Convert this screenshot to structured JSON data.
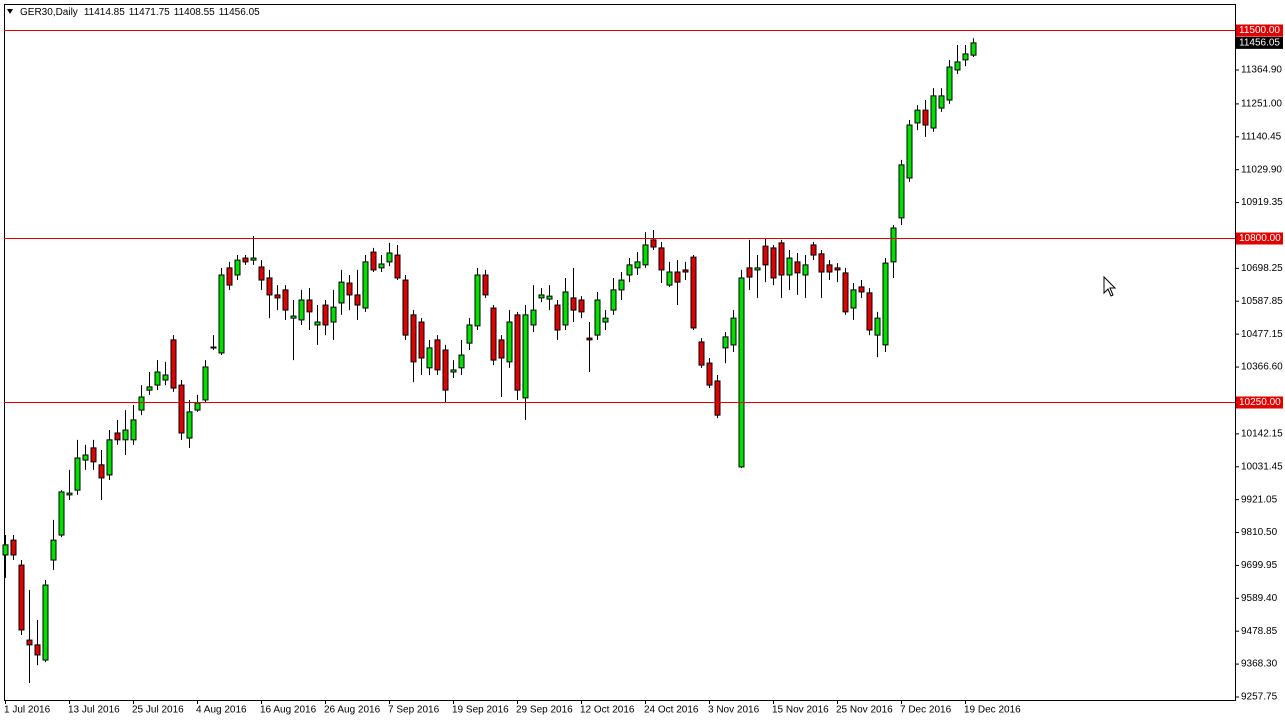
{
  "chart_data": {
    "type": "candlestick",
    "title": "GER30,Daily",
    "categories": [
      "1 Jul 2016",
      null,
      null,
      null,
      null,
      null,
      null,
      null,
      "13 Jul 2016",
      null,
      null,
      null,
      null,
      null,
      null,
      null,
      "25 Jul 2016",
      null,
      null,
      null,
      null,
      null,
      null,
      null,
      "4 Aug 2016",
      null,
      null,
      null,
      null,
      null,
      null,
      null,
      "16 Aug 2016",
      null,
      null,
      null,
      null,
      null,
      null,
      null,
      "26 Aug 2016",
      null,
      null,
      null,
      null,
      null,
      null,
      null,
      "7 Sep 2016",
      null,
      null,
      null,
      null,
      null,
      null,
      null,
      "19 Sep 2016",
      null,
      null,
      null,
      null,
      null,
      null,
      null,
      "29 Sep 2016",
      null,
      null,
      null,
      null,
      null,
      null,
      null,
      "12 Oct 2016",
      null,
      null,
      null,
      null,
      null,
      null,
      null,
      "24 Oct 2016",
      null,
      null,
      null,
      null,
      null,
      null,
      null,
      "3 Nov 2016",
      null,
      null,
      null,
      null,
      null,
      null,
      null,
      "15 Nov 2016",
      null,
      null,
      null,
      null,
      null,
      null,
      null,
      "25 Nov 2016",
      null,
      null,
      null,
      null,
      null,
      null,
      null,
      "7 Dec 2016",
      null,
      null,
      null,
      null,
      null,
      null,
      null,
      "19 Dec 2016",
      null
    ],
    "open": [
      9735,
      9785,
      9701,
      9449,
      9433,
      9382,
      9718,
      9802,
      9937,
      9953,
      10054,
      10095,
      10038,
      10004,
      10145,
      10122,
      10122,
      10222,
      10289,
      10306,
      10323,
      10458,
      10306,
      10128,
      10222,
      10256,
      10431,
      10414,
      10700,
      10676,
      10733,
      10726,
      10703,
      10666,
      10609,
      10626,
      10531,
      10525,
      10592,
      10508,
      10575,
      10518,
      10582,
      10649,
      10609,
      10565,
      10753,
      10700,
      10720,
      10743,
      10659,
      10542,
      10518,
      10364,
      10458,
      10424,
      10350,
      10364,
      10447,
      10505,
      10676,
      10565,
      10458,
      10384,
      10542,
      10263,
      10508,
      10599,
      10595,
      10575,
      10508,
      10599,
      10592,
      10464,
      10474,
      10518,
      10558,
      10626,
      10676,
      10700,
      10710,
      10794,
      10767,
      10642,
      10686,
      10693,
      10736,
      10451,
      10380,
      10320,
      10431,
      10441,
      10031,
      10700,
      10693,
      10773,
      10767,
      10784,
      10676,
      10720,
      10676,
      10777,
      10747,
      10710,
      10700,
      10683,
      10565,
      10636,
      10616,
      10474,
      10441,
      10720,
      10868,
      11002,
      11187,
      11230,
      11170,
      11237,
      11264,
      11365,
      11399,
      11414.85
    ],
    "high": [
      9802,
      9802,
      9718,
      9617,
      9517,
      9651,
      9853,
      9953,
      10021,
      10122,
      10105,
      10122,
      10088,
      10155,
      10189,
      10222,
      10239,
      10306,
      10350,
      10390,
      10384,
      10474,
      10323,
      10256,
      10273,
      10390,
      10474,
      10700,
      10720,
      10743,
      10743,
      10807,
      10726,
      10693,
      10642,
      10642,
      10592,
      10626,
      10632,
      10575,
      10592,
      10626,
      10693,
      10676,
      10693,
      10743,
      10767,
      10743,
      10784,
      10777,
      10676,
      10558,
      10531,
      10458,
      10474,
      10441,
      10390,
      10458,
      10531,
      10700,
      10693,
      10575,
      10474,
      10558,
      10552,
      10575,
      10642,
      10632,
      10642,
      10592,
      10666,
      10700,
      10605,
      10518,
      10619,
      10558,
      10666,
      10686,
      10733,
      10753,
      10820,
      10827,
      10787,
      10720,
      10726,
      10720,
      10743,
      10464,
      10397,
      10340,
      10484,
      10558,
      10693,
      10794,
      10743,
      10800,
      10777,
      10794,
      10760,
      10750,
      10743,
      10787,
      10760,
      10726,
      10716,
      10700,
      10649,
      10659,
      10632,
      10552,
      10733,
      10844,
      11063,
      11197,
      11247,
      11264,
      11304,
      11304,
      11399,
      11449,
      11449,
      11471.75
    ],
    "low": [
      9658,
      9718,
      9466,
      9305,
      9365,
      9375,
      9685,
      9795,
      9920,
      9937,
      10021,
      10021,
      9920,
      9987,
      10105,
      10071,
      10105,
      10205,
      10273,
      10289,
      10306,
      10283,
      10122,
      10095,
      10216,
      10249,
      10424,
      10407,
      10626,
      10659,
      10710,
      10710,
      10626,
      10531,
      10558,
      10525,
      10390,
      10508,
      10491,
      10441,
      10474,
      10458,
      10542,
      10558,
      10525,
      10552,
      10686,
      10686,
      10706,
      10659,
      10458,
      10316,
      10340,
      10340,
      10340,
      10246,
      10330,
      10340,
      10424,
      10491,
      10599,
      10373,
      10266,
      10364,
      10256,
      10189,
      10484,
      10585,
      10558,
      10458,
      10491,
      10518,
      10531,
      10350,
      10458,
      10491,
      10542,
      10592,
      10652,
      10676,
      10700,
      10760,
      10649,
      10636,
      10575,
      10659,
      10491,
      10364,
      10296,
      10195,
      10380,
      10417,
      10027,
      10626,
      10599,
      10652,
      10642,
      10599,
      10626,
      10609,
      10599,
      10726,
      10599,
      10659,
      10652,
      10542,
      10525,
      10599,
      10474,
      10400,
      10417,
      10666,
      10844,
      10989,
      11163,
      11140,
      11157,
      11224,
      11251,
      11352,
      11378,
      11408.55
    ],
    "close": [
      9769,
      9735,
      9483,
      9433,
      9399,
      9634,
      9785,
      9947,
      9943,
      10061,
      10071,
      10048,
      9994,
      10122,
      10122,
      10155,
      10189,
      10266,
      10300,
      10350,
      10340,
      10296,
      10145,
      10216,
      10246,
      10367,
      10434,
      10676,
      10642,
      10726,
      10720,
      10733,
      10659,
      10609,
      10599,
      10558,
      10538,
      10592,
      10552,
      10518,
      10508,
      10568,
      10652,
      10609,
      10575,
      10720,
      10693,
      10713,
      10750,
      10666,
      10474,
      10384,
      10397,
      10431,
      10357,
      10289,
      10357,
      10407,
      10508,
      10676,
      10609,
      10390,
      10397,
      10518,
      10289,
      10542,
      10558,
      10609,
      10605,
      10491,
      10619,
      10558,
      10552,
      10458,
      10592,
      10531,
      10626,
      10659,
      10710,
      10720,
      10777,
      10770,
      10693,
      10686,
      10652,
      10686,
      10498,
      10373,
      10306,
      10205,
      10468,
      10531,
      10666,
      10669,
      10700,
      10710,
      10666,
      10676,
      10733,
      10683,
      10710,
      10743,
      10686,
      10686,
      10693,
      10552,
      10626,
      10619,
      10491,
      10531,
      10716,
      10834,
      11046,
      11180,
      11230,
      11180,
      11278,
      11278,
      11375,
      11392,
      11419,
      11456.05
    ],
    "up_color": "#00e000",
    "down_color": "#e00000",
    "ylim": [
      9247.67,
      11586.72
    ],
    "yticks": [
      {
        "value": 11364.9,
        "label": "11364.90"
      },
      {
        "value": 11251,
        "label": "11251.00"
      },
      11140.45,
      {
        "value": 11029.9,
        "label": "11029.90"
      },
      10919.35,
      10698.25,
      10587.85,
      10477.15,
      {
        "value": 10366.6,
        "label": "10366.60"
      },
      10142.15,
      10031.45,
      9921.05,
      {
        "value": 9810.5,
        "label": "9810.50"
      },
      9699.95,
      {
        "value": 9589.4,
        "label": "9589.40"
      },
      9478.85,
      {
        "value": 9368.3,
        "label": "9368.30"
      },
      9257.75
    ],
    "levels": [
      {
        "value": 11500,
        "label": "11500.00"
      },
      {
        "value": 10800,
        "label": "10800.00"
      },
      {
        "value": 10250,
        "label": "10250.00"
      }
    ],
    "level_color": "#e00000"
  }
}
